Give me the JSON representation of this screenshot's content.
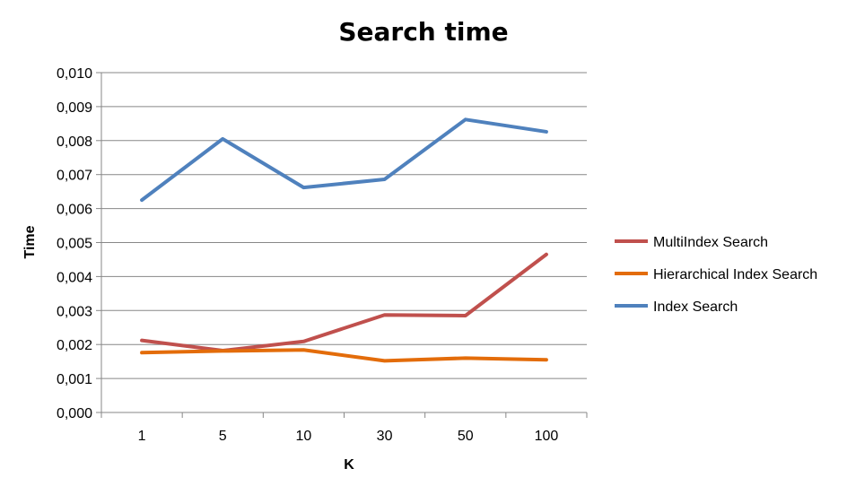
{
  "chart_data": {
    "type": "line",
    "title": "Search time",
    "xlabel": "K",
    "ylabel": "Time",
    "categories": [
      "1",
      "5",
      "10",
      "30",
      "50",
      "100"
    ],
    "ylim": [
      0,
      0.01
    ],
    "yticks": [
      "0,000",
      "0,001",
      "0,002",
      "0,003",
      "0,004",
      "0,005",
      "0,006",
      "0,007",
      "0,008",
      "0,009",
      "0,010"
    ],
    "grid": true,
    "legend_position": "right",
    "series": [
      {
        "name": "MultiIndex Search",
        "color": "#c0504d",
        "values": [
          0.00212,
          0.00182,
          0.00209,
          0.00287,
          0.00285,
          0.00465
        ]
      },
      {
        "name": "Hierarchical Index Search",
        "color": "#e36c0a",
        "values": [
          0.00176,
          0.00181,
          0.00184,
          0.00152,
          0.0016,
          0.00155
        ]
      },
      {
        "name": "Index Search",
        "color": "#4f81bd",
        "values": [
          0.00625,
          0.00805,
          0.00662,
          0.00686,
          0.00862,
          0.00826
        ]
      }
    ]
  }
}
